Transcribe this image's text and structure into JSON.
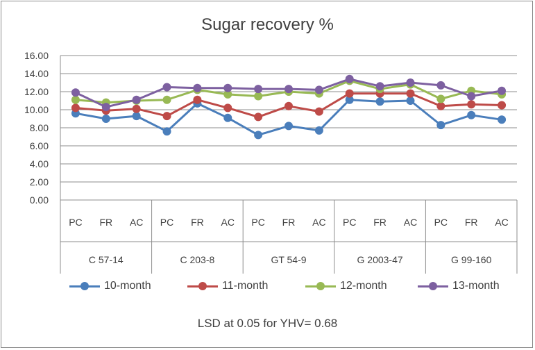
{
  "chart_data": {
    "type": "line",
    "title": "Sugar recovery %",
    "xlabel": "",
    "ylabel": "",
    "ylim": [
      0,
      16
    ],
    "yticks": [
      "0.00",
      "2.00",
      "4.00",
      "6.00",
      "8.00",
      "10.00",
      "12.00",
      "14.00",
      "16.00"
    ],
    "grid": true,
    "legend_position": "bottom",
    "groups": [
      {
        "name": "C 57-14",
        "categories": [
          "PC",
          "FR",
          "AC"
        ]
      },
      {
        "name": "C 203-8",
        "categories": [
          "PC",
          "FR",
          "AC"
        ]
      },
      {
        "name": "GT 54-9",
        "categories": [
          "PC",
          "FR",
          "AC"
        ]
      },
      {
        "name": "G 2003-47",
        "categories": [
          "PC",
          "FR",
          "AC"
        ]
      },
      {
        "name": "G 99-160",
        "categories": [
          "PC",
          "FR",
          "AC"
        ]
      }
    ],
    "series": [
      {
        "name": "10-month",
        "color": "#4a7ebb",
        "values": [
          9.6,
          9.0,
          9.3,
          7.6,
          10.7,
          9.1,
          7.2,
          8.2,
          7.7,
          11.1,
          10.9,
          11.0,
          8.3,
          9.4,
          8.9
        ]
      },
      {
        "name": "11-month",
        "color": "#be4b48",
        "values": [
          10.2,
          9.9,
          10.1,
          9.3,
          11.1,
          10.2,
          9.2,
          10.4,
          9.8,
          11.8,
          11.8,
          11.8,
          10.4,
          10.6,
          10.5
        ]
      },
      {
        "name": "12-month",
        "color": "#98b954",
        "values": [
          11.1,
          10.8,
          11.0,
          11.1,
          12.2,
          11.7,
          11.5,
          12.0,
          11.8,
          13.2,
          12.3,
          12.8,
          11.2,
          12.1,
          11.7
        ]
      },
      {
        "name": "13-month",
        "color": "#7d60a0",
        "values": [
          11.9,
          10.3,
          11.1,
          12.5,
          12.4,
          12.4,
          12.3,
          12.3,
          12.2,
          13.4,
          12.6,
          13.0,
          12.7,
          11.5,
          12.1
        ]
      }
    ],
    "annotation": "LSD at 0.05 for YHV= 0.68"
  }
}
